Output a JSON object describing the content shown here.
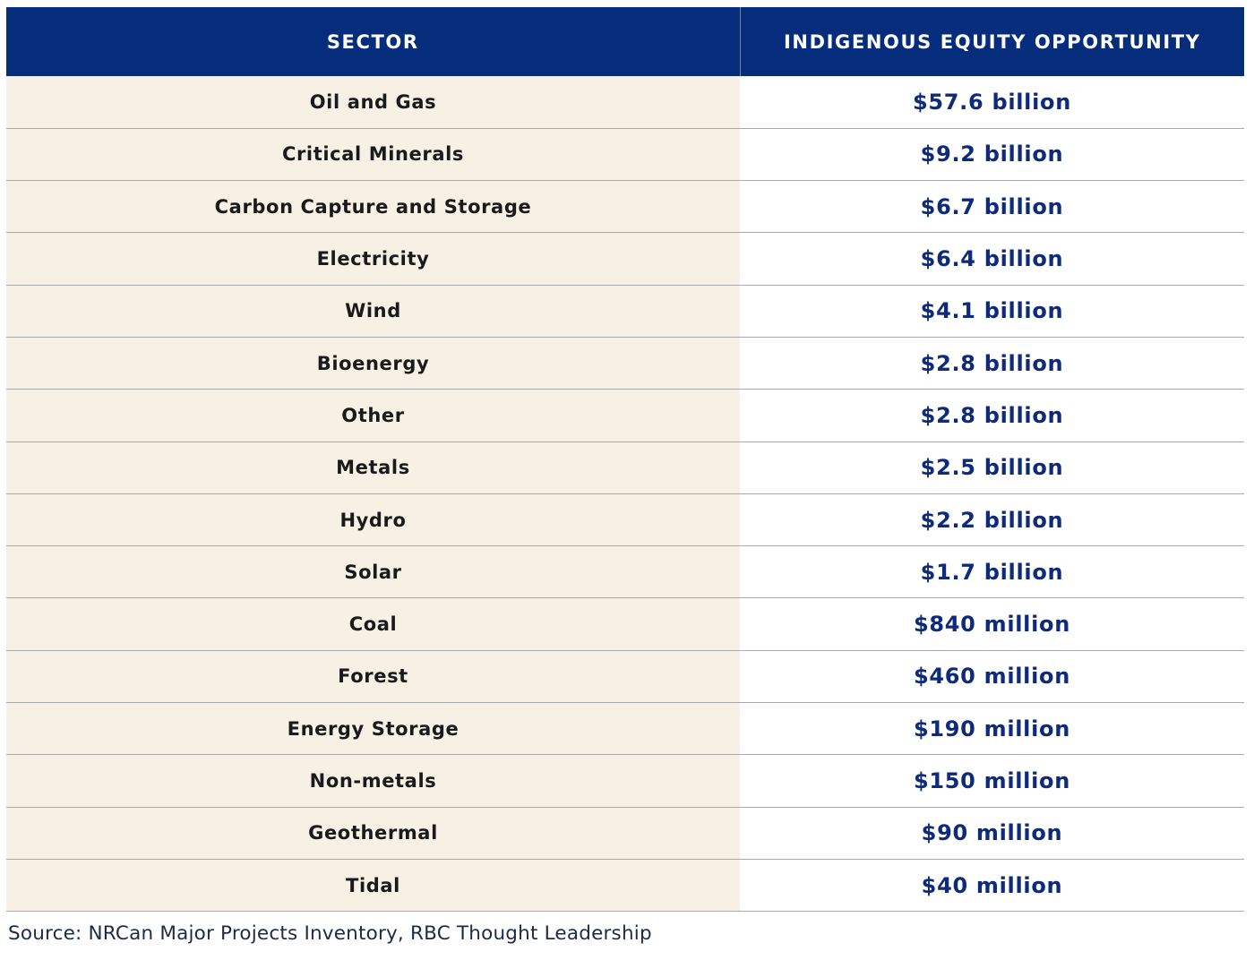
{
  "colors": {
    "header_bg": "#062c7c",
    "header_text": "#ffffff",
    "sector_bg": "#f6f1e4",
    "amount_text": "#0d2b7a",
    "row_border": "#a9a9a9"
  },
  "chart_data": {
    "type": "table",
    "columns": [
      "SECTOR",
      "INDIGENOUS EQUITY OPPORTUNITY"
    ],
    "rows": [
      {
        "sector": "Oil and Gas",
        "amount": "$57.6 billion"
      },
      {
        "sector": "Critical Minerals",
        "amount": "$9.2 billion"
      },
      {
        "sector": "Carbon Capture and Storage",
        "amount": "$6.7 billion"
      },
      {
        "sector": "Electricity",
        "amount": "$6.4 billion"
      },
      {
        "sector": "Wind",
        "amount": "$4.1 billion"
      },
      {
        "sector": "Bioenergy",
        "amount": "$2.8 billion"
      },
      {
        "sector": "Other",
        "amount": "$2.8 billion"
      },
      {
        "sector": "Metals",
        "amount": "$2.5 billion"
      },
      {
        "sector": "Hydro",
        "amount": "$2.2 billion"
      },
      {
        "sector": "Solar",
        "amount": "$1.7 billion"
      },
      {
        "sector": "Coal",
        "amount": "$840 million"
      },
      {
        "sector": "Forest",
        "amount": "$460 million"
      },
      {
        "sector": "Energy Storage",
        "amount": "$190 million"
      },
      {
        "sector": "Non-metals",
        "amount": "$150 million"
      },
      {
        "sector": "Geothermal",
        "amount": "$90 million"
      },
      {
        "sector": "Tidal",
        "amount": "$40 million"
      }
    ],
    "source": "Source: NRCan Major Projects Inventory, RBC Thought Leadership"
  }
}
